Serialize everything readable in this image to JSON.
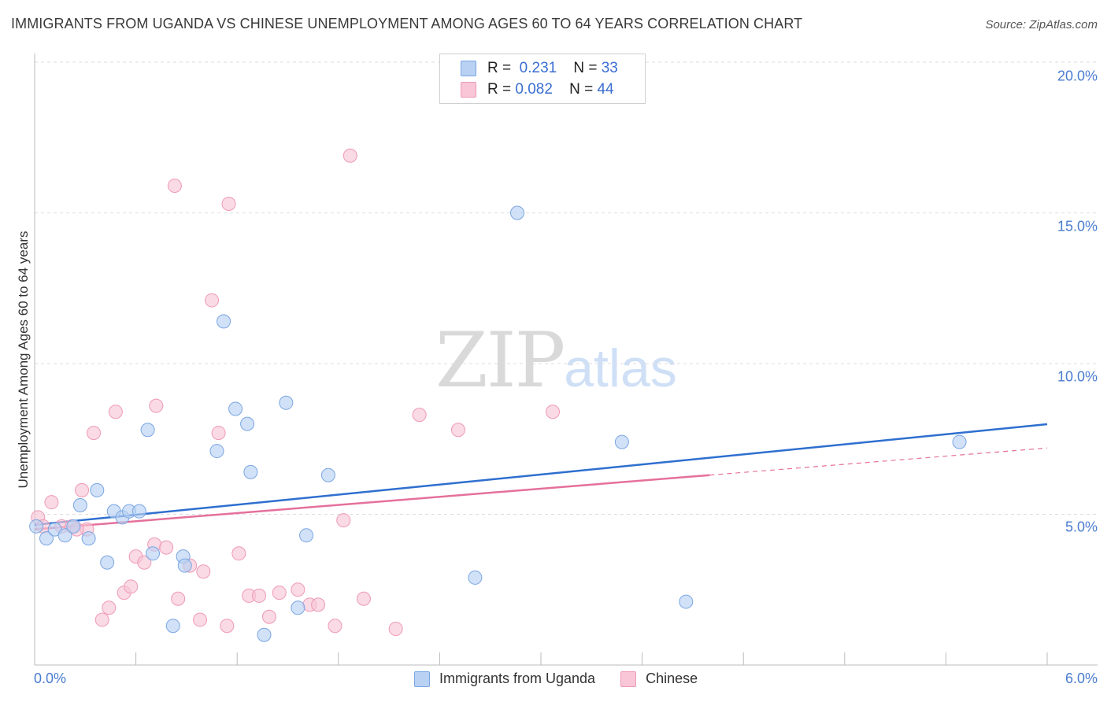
{
  "header": {
    "title": "IMMIGRANTS FROM UGANDA VS CHINESE UNEMPLOYMENT AMONG AGES 60 TO 64 YEARS CORRELATION CHART",
    "source": "Source: ZipAtlas.com"
  },
  "watermark": {
    "zip": "ZIP",
    "atlas": "atlas"
  },
  "legend": {
    "uganda": {
      "r_label": "R =",
      "r_value": "0.231",
      "n_label": "N =",
      "n_value": "33"
    },
    "chinese": {
      "r_label": "R =",
      "r_value": "0.082",
      "n_label": "N =",
      "n_value": "44"
    }
  },
  "colors": {
    "uganda_fill": "#b9d1f3",
    "uganda_stroke": "#7aa6e3",
    "uganda_line": "#2e6fcf",
    "chinese_fill": "#f8c6d6",
    "chinese_stroke": "#ee9ab7",
    "chinese_line": "#e5709b",
    "tick_text": "#4a7cd0",
    "grid": "#dddddd"
  },
  "chart_data": {
    "type": "scatter",
    "title": "IMMIGRANTS FROM UGANDA VS CHINESE UNEMPLOYMENT AMONG AGES 60 TO 64 YEARS CORRELATION CHART",
    "xlabel": "",
    "ylabel": "Unemployment Among Ages 60 to 64 years",
    "xlim": [
      0,
      6
    ],
    "ylim": [
      0,
      20
    ],
    "x_tick_labels": [
      "0.0%",
      "6.0%"
    ],
    "y_ticks": [
      5,
      10,
      15,
      20
    ],
    "y_tick_labels": [
      "5.0%",
      "10.0%",
      "15.0%",
      "20.0%"
    ],
    "legend_position": "top-center",
    "series": [
      {
        "name": "Immigrants from Uganda",
        "points": [
          [
            0.01,
            4.6
          ],
          [
            0.07,
            4.2
          ],
          [
            0.12,
            4.5
          ],
          [
            0.18,
            4.3
          ],
          [
            0.23,
            4.6
          ],
          [
            0.27,
            5.3
          ],
          [
            0.32,
            4.2
          ],
          [
            0.37,
            5.8
          ],
          [
            0.43,
            3.4
          ],
          [
            0.47,
            5.1
          ],
          [
            0.52,
            4.9
          ],
          [
            0.56,
            5.1
          ],
          [
            0.62,
            5.1
          ],
          [
            0.67,
            7.8
          ],
          [
            0.7,
            3.7
          ],
          [
            0.82,
            1.3
          ],
          [
            0.88,
            3.6
          ],
          [
            0.89,
            3.3
          ],
          [
            1.08,
            7.1
          ],
          [
            1.12,
            11.4
          ],
          [
            1.19,
            8.5
          ],
          [
            1.26,
            8.0
          ],
          [
            1.28,
            6.4
          ],
          [
            1.36,
            1.0
          ],
          [
            1.49,
            8.7
          ],
          [
            1.56,
            1.9
          ],
          [
            1.61,
            4.3
          ],
          [
            1.74,
            6.3
          ],
          [
            2.61,
            2.9
          ],
          [
            2.86,
            15.0
          ],
          [
            3.48,
            7.4
          ],
          [
            3.86,
            2.1
          ],
          [
            5.48,
            7.4
          ]
        ],
        "trend": {
          "x": [
            0,
            6
          ],
          "y": [
            4.65,
            7.99
          ]
        }
      },
      {
        "name": "Chinese",
        "points": [
          [
            0.02,
            4.9
          ],
          [
            0.05,
            4.6
          ],
          [
            0.1,
            5.4
          ],
          [
            0.16,
            4.6
          ],
          [
            0.22,
            4.6
          ],
          [
            0.28,
            5.8
          ],
          [
            0.31,
            4.5
          ],
          [
            0.35,
            7.7
          ],
          [
            0.4,
            1.5
          ],
          [
            0.44,
            1.9
          ],
          [
            0.48,
            8.4
          ],
          [
            0.53,
            2.4
          ],
          [
            0.57,
            2.6
          ],
          [
            0.6,
            3.6
          ],
          [
            0.65,
            3.4
          ],
          [
            0.71,
            4.0
          ],
          [
            0.72,
            8.6
          ],
          [
            0.78,
            3.9
          ],
          [
            0.85,
            2.2
          ],
          [
            0.83,
            15.9
          ],
          [
            0.92,
            3.3
          ],
          [
            0.98,
            1.5
          ],
          [
            1.0,
            3.1
          ],
          [
            1.05,
            12.1
          ],
          [
            1.09,
            7.7
          ],
          [
            1.14,
            1.3
          ],
          [
            1.15,
            15.3
          ],
          [
            1.21,
            3.7
          ],
          [
            1.27,
            2.3
          ],
          [
            1.33,
            2.3
          ],
          [
            1.39,
            1.6
          ],
          [
            1.45,
            2.4
          ],
          [
            1.56,
            2.5
          ],
          [
            1.63,
            2.0
          ],
          [
            1.68,
            2.0
          ],
          [
            1.78,
            1.3
          ],
          [
            1.83,
            4.8
          ],
          [
            1.87,
            16.9
          ],
          [
            1.95,
            2.2
          ],
          [
            2.14,
            1.2
          ],
          [
            2.28,
            8.3
          ],
          [
            2.51,
            7.8
          ],
          [
            3.07,
            8.4
          ],
          [
            0.25,
            4.5
          ]
        ],
        "trend": {
          "x": [
            0,
            4
          ],
          "y": [
            4.5,
            6.3
          ]
        },
        "trend_extrapolated": {
          "x": [
            4,
            6
          ],
          "y": [
            6.3,
            7.2
          ]
        }
      }
    ]
  },
  "bottom_legend": [
    {
      "label": "Immigrants from Uganda"
    },
    {
      "label": "Chinese"
    }
  ]
}
